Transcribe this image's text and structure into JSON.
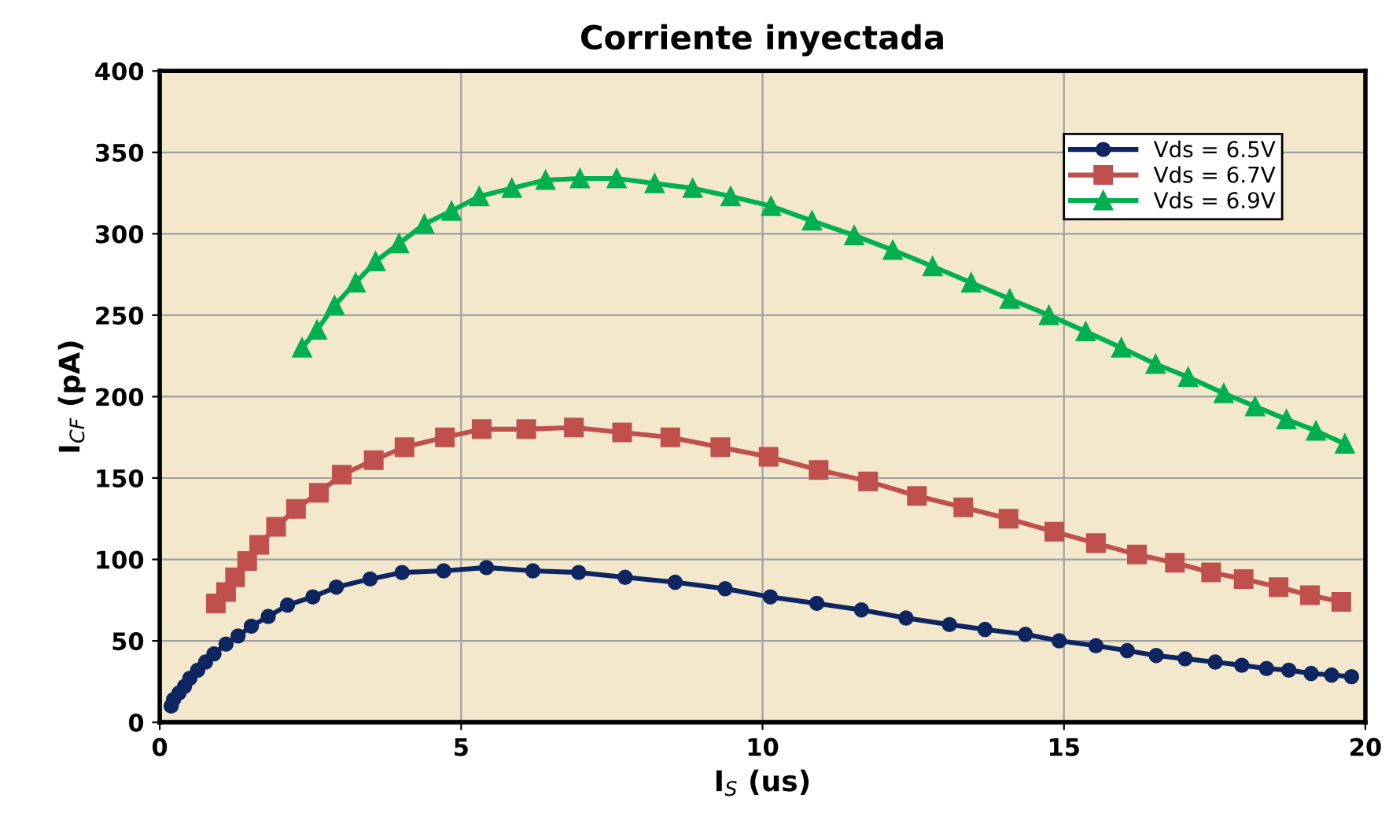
{
  "chart_data": {
    "type": "line",
    "title": "Corriente inyectada",
    "xlabel": "I$_{S}$ (us)",
    "ylabel": "I$_{CF}$ (pA)",
    "xlim": [
      0,
      20
    ],
    "xticks": [
      0,
      5,
      10,
      15,
      20
    ],
    "ylim": [
      0,
      400
    ],
    "yticks": [
      0,
      50,
      100,
      150,
      200,
      250,
      300,
      350,
      400
    ],
    "grid": true,
    "legend": "top right",
    "series": [
      {
        "name": "Vds = 6.5V",
        "color": "#0d2560",
        "marker": "circle",
        "x": [
          0.19,
          0.23,
          0.32,
          0.41,
          0.5,
          0.63,
          0.76,
          0.9,
          1.1,
          1.3,
          1.52,
          1.8,
          2.12,
          2.54,
          2.93,
          3.49,
          4.02,
          4.71,
          5.42,
          6.19,
          6.95,
          7.72,
          8.55,
          9.38,
          10.13,
          10.9,
          11.64,
          12.38,
          13.1,
          13.69,
          14.36,
          14.92,
          15.53,
          16.05,
          16.53,
          17.01,
          17.51,
          17.95,
          18.36,
          18.73,
          19.1,
          19.44,
          19.77
        ],
        "values": [
          10,
          14,
          18,
          22,
          27,
          32,
          37,
          42,
          48,
          53,
          59,
          65,
          72,
          77,
          83,
          88,
          92,
          93,
          95,
          93,
          92,
          89,
          86,
          82,
          77,
          73,
          69,
          64,
          60,
          57,
          54,
          50,
          47,
          44,
          41,
          39,
          37,
          35,
          33,
          32,
          30,
          29,
          28
        ]
      },
      {
        "name": "Vds = 6.7V",
        "color": "#c0504d",
        "marker": "square",
        "x": [
          0.93,
          1.1,
          1.25,
          1.45,
          1.65,
          1.93,
          2.26,
          2.64,
          3.02,
          3.55,
          4.06,
          4.73,
          5.34,
          6.08,
          6.87,
          7.67,
          8.47,
          9.3,
          10.1,
          10.93,
          11.75,
          12.56,
          13.33,
          14.08,
          14.84,
          15.53,
          16.21,
          16.84,
          17.44,
          17.98,
          18.56,
          19.08,
          19.6
        ],
        "values": [
          73,
          80,
          89,
          99,
          109,
          120,
          131,
          141,
          152,
          161,
          169,
          175,
          180,
          180,
          181,
          178,
          175,
          169,
          163,
          155,
          148,
          139,
          132,
          125,
          117,
          110,
          103,
          98,
          92,
          88,
          83,
          78,
          74
        ]
      },
      {
        "name": "Vds = 6.9V",
        "color": "#00b050",
        "marker": "triangle",
        "x": [
          2.36,
          2.61,
          2.9,
          3.25,
          3.58,
          3.97,
          4.39,
          4.84,
          5.3,
          5.84,
          6.4,
          6.97,
          7.58,
          8.21,
          8.84,
          9.47,
          10.14,
          10.82,
          11.52,
          12.16,
          12.82,
          13.46,
          14.1,
          14.75,
          15.36,
          15.95,
          16.52,
          17.06,
          17.65,
          18.17,
          18.69,
          19.18,
          19.66
        ],
        "values": [
          230,
          241,
          256,
          270,
          283,
          294,
          306,
          314,
          323,
          328,
          333,
          334,
          334,
          331,
          328,
          323,
          317,
          308,
          299,
          290,
          280,
          270,
          260,
          250,
          240,
          230,
          220,
          212,
          202,
          194,
          186,
          179,
          171
        ]
      }
    ]
  }
}
